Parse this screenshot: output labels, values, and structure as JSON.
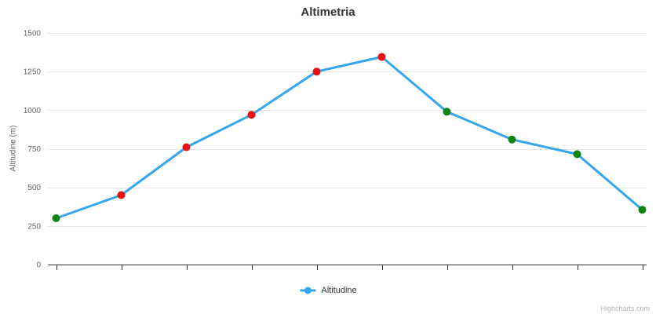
{
  "chart_data": {
    "type": "line",
    "title": "Altimetria",
    "ylabel": "Altitudine (m)",
    "xlabel": "",
    "yticks": [
      0,
      250,
      500,
      750,
      1000,
      1250,
      1500
    ],
    "ylim": [
      0,
      1500
    ],
    "grid": true,
    "x_axis_labels": false,
    "legend_position": "bottom",
    "series": [
      {
        "name": "Altitudine",
        "color": "#35A6EC",
        "line_width": 3,
        "marker_radius": 5,
        "values": [
          300,
          450,
          760,
          970,
          1250,
          1345,
          990,
          810,
          715,
          355
        ],
        "marker_colors": [
          "#0F850F",
          "#E81010",
          "#E81010",
          "#E81010",
          "#E81010",
          "#E81010",
          "#0F850F",
          "#0F850F",
          "#0F850F",
          "#0F850F"
        ]
      }
    ]
  },
  "colors": {
    "line": "#35A6EC",
    "marker_climb": "#E81010",
    "marker_descent": "#0F850F",
    "grid": "#E6E6E6",
    "axis": "#333333",
    "tick_label": "#666666",
    "title": "#333333"
  },
  "credits": "Highcharts.com"
}
